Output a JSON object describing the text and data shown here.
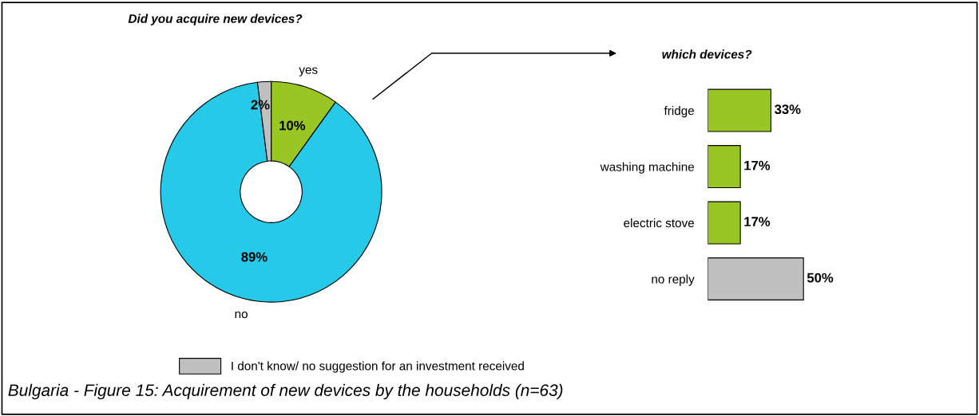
{
  "chart_data": [
    {
      "type": "donut",
      "title": "Did you acquire new devices?",
      "categories": [
        "yes",
        "no",
        "I don't know/ no suggestion for an investment received"
      ],
      "values": [
        10,
        89,
        2
      ],
      "value_labels": [
        "10%",
        "89%",
        "2%"
      ],
      "colors": [
        "#99c623",
        "#27c9e9",
        "#c0c0c0"
      ],
      "legend": "bottom",
      "annotations": [
        "Bulgaria - Figure 15: Acquirement of new devices by the households (n=63)"
      ]
    },
    {
      "type": "bar",
      "orientation": "horizontal",
      "title": "which devices?",
      "categories": [
        "fridge",
        "washing machine",
        "electric stove",
        "no reply"
      ],
      "values": [
        33,
        17,
        17,
        50
      ],
      "value_labels": [
        "33%",
        "17%",
        "17%",
        "50%"
      ],
      "colors": [
        "#99c623",
        "#99c623",
        "#99c623",
        "#c0c0c0"
      ]
    }
  ]
}
